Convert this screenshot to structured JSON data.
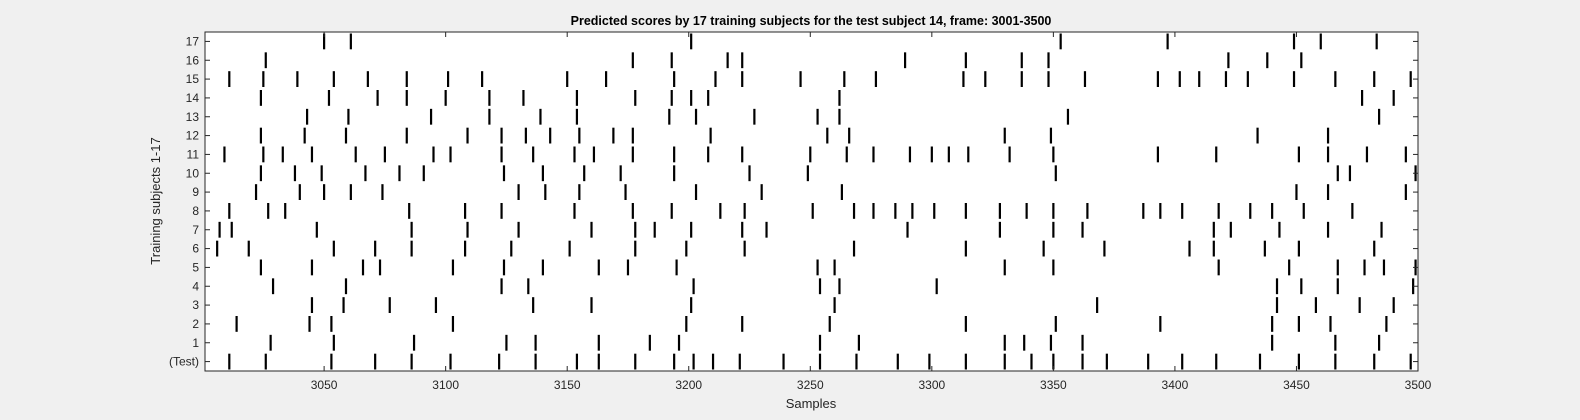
{
  "chart_data": {
    "type": "raster",
    "title": "Predicted scores by 17 training subjects for the test subject 14, frame: 3001-3500",
    "xlabel": "Samples",
    "ylabel": "Training subjects 1-17",
    "xlim": [
      3001,
      3500
    ],
    "xticks": [
      3050,
      3100,
      3150,
      3200,
      3250,
      3300,
      3350,
      3400,
      3450,
      3500
    ],
    "row_labels": [
      "(Test)",
      "1",
      "2",
      "3",
      "4",
      "5",
      "6",
      "7",
      "8",
      "9",
      "10",
      "11",
      "12",
      "13",
      "14",
      "15",
      "16",
      "17"
    ],
    "grid": false,
    "rows": [
      {
        "label": "(Test)",
        "events": [
          3011,
          3026,
          3053,
          3071,
          3086,
          3102,
          3122,
          3137,
          3154,
          3163,
          3178,
          3194,
          3202,
          3210,
          3221,
          3239,
          3254,
          3269,
          3286,
          3299,
          3314,
          3330,
          3341,
          3350,
          3362,
          3372,
          3389,
          3403,
          3417,
          3435,
          3451,
          3466,
          3482,
          3497
        ]
      },
      {
        "label": "1",
        "events": [
          3028,
          3054,
          3087,
          3125,
          3137,
          3163,
          3184,
          3196,
          3254,
          3270,
          3330,
          3338,
          3349,
          3362,
          3440,
          3466,
          3484
        ]
      },
      {
        "label": "2",
        "events": [
          3014,
          3044,
          3053,
          3103,
          3199,
          3222,
          3258,
          3314,
          3351,
          3394,
          3440,
          3451,
          3464,
          3487
        ]
      },
      {
        "label": "3",
        "events": [
          3045,
          3058,
          3077,
          3096,
          3136,
          3160,
          3201,
          3260,
          3368,
          3442,
          3458,
          3476,
          3490
        ]
      },
      {
        "label": "4",
        "events": [
          3029,
          3059,
          3123,
          3134,
          3202,
          3254,
          3262,
          3302,
          3442,
          3452,
          3467,
          3498
        ]
      },
      {
        "label": "5",
        "events": [
          3024,
          3045,
          3066,
          3073,
          3103,
          3124,
          3140,
          3163,
          3175,
          3195,
          3253,
          3260,
          3330,
          3350,
          3418,
          3447,
          3467,
          3478,
          3486,
          3499
        ]
      },
      {
        "label": "6",
        "events": [
          3006,
          3019,
          3054,
          3071,
          3086,
          3108,
          3127,
          3151,
          3178,
          3199,
          3223,
          3268,
          3314,
          3346,
          3371,
          3406,
          3416,
          3437,
          3451,
          3482
        ]
      },
      {
        "label": "7",
        "events": [
          3007,
          3012,
          3047,
          3086,
          3109,
          3130,
          3160,
          3178,
          3186,
          3201,
          3222,
          3232,
          3290,
          3328,
          3350,
          3362,
          3416,
          3423,
          3443,
          3463,
          3485
        ]
      },
      {
        "label": "8",
        "events": [
          3011,
          3027,
          3034,
          3085,
          3108,
          3123,
          3153,
          3177,
          3193,
          3213,
          3223,
          3251,
          3268,
          3276,
          3285,
          3292,
          3301,
          3314,
          3328,
          3339,
          3350,
          3364,
          3387,
          3394,
          3403,
          3418,
          3431,
          3440,
          3453,
          3473
        ]
      },
      {
        "label": "9",
        "events": [
          3022,
          3040,
          3050,
          3061,
          3074,
          3130,
          3141,
          3155,
          3174,
          3203,
          3230,
          3263,
          3450,
          3463,
          3495
        ]
      },
      {
        "label": "10",
        "events": [
          3024,
          3038,
          3049,
          3067,
          3081,
          3091,
          3124,
          3140,
          3157,
          3172,
          3194,
          3225,
          3249,
          3351,
          3467,
          3472,
          3499
        ]
      },
      {
        "label": "11",
        "events": [
          3009,
          3025,
          3033,
          3045,
          3063,
          3075,
          3095,
          3102,
          3123,
          3136,
          3153,
          3161,
          3177,
          3194,
          3208,
          3222,
          3250,
          3265,
          3276,
          3291,
          3300,
          3307,
          3315,
          3332,
          3350,
          3393,
          3417,
          3451,
          3463,
          3479,
          3495
        ]
      },
      {
        "label": "12",
        "events": [
          3024,
          3042,
          3059,
          3084,
          3109,
          3123,
          3133,
          3143,
          3155,
          3169,
          3177,
          3209,
          3257,
          3266,
          3330,
          3349,
          3434,
          3463
        ]
      },
      {
        "label": "13",
        "events": [
          3043,
          3060,
          3094,
          3118,
          3139,
          3154,
          3192,
          3203,
          3227,
          3253,
          3262,
          3356,
          3484
        ]
      },
      {
        "label": "14",
        "events": [
          3024,
          3052,
          3072,
          3084,
          3100,
          3118,
          3132,
          3154,
          3178,
          3193,
          3201,
          3208,
          3262,
          3477,
          3490
        ]
      },
      {
        "label": "15",
        "events": [
          3011,
          3025,
          3039,
          3054,
          3068,
          3084,
          3101,
          3115,
          3150,
          3166,
          3194,
          3211,
          3222,
          3246,
          3264,
          3277,
          3313,
          3322,
          3337,
          3348,
          3363,
          3393,
          3402,
          3410,
          3421,
          3430,
          3449,
          3466,
          3482,
          3497
        ]
      },
      {
        "label": "16",
        "events": [
          3026,
          3177,
          3193,
          3216,
          3222,
          3289,
          3314,
          3337,
          3348,
          3422,
          3438,
          3452
        ]
      },
      {
        "label": "17",
        "events": [
          3050,
          3061,
          3201,
          3353,
          3397,
          3449,
          3460,
          3483
        ]
      }
    ]
  }
}
